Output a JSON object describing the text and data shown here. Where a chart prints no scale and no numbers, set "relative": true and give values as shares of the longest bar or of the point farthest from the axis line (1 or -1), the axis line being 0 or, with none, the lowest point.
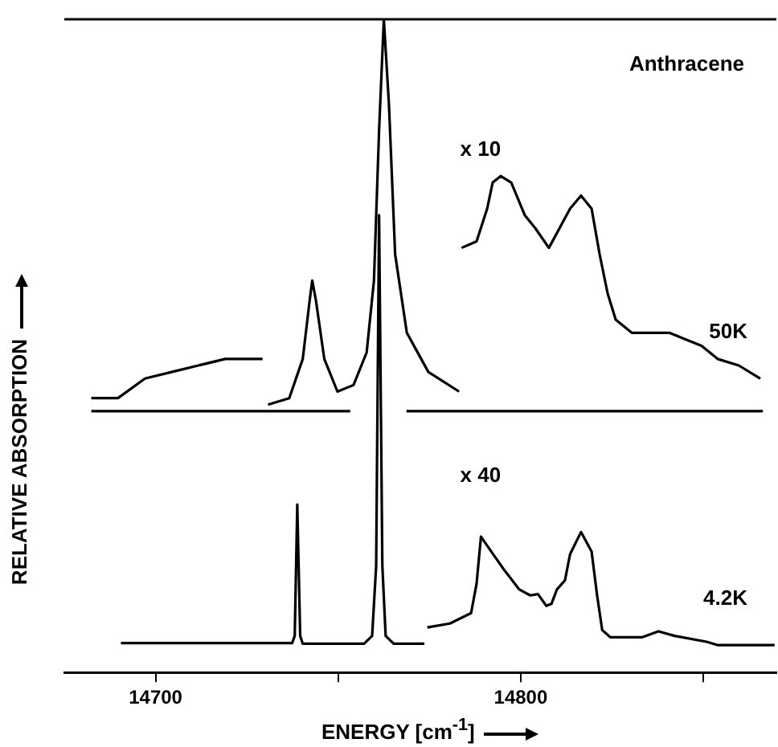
{
  "chart_data": {
    "type": "line",
    "title": "Anthracene",
    "xlabel": "ENERGY [cm$^{-1}$]",
    "ylabel": "RELATIVE ABSORPTION",
    "relative": true,
    "marker": "none",
    "line_style": "solid",
    "xlim": [
      14675,
      14870
    ],
    "xticks": [
      14700,
      {
        "value": 14750,
        "label": null
      },
      14800,
      {
        "value": 14850,
        "label": null
      }
    ],
    "series": [
      {
        "color": "#000000",
        "x": [
          14682.4,
          14753.3,
          14753.4,
          14768.7,
          14866.3
        ],
        "values": [
          0.4,
          0.4,
          null,
          0.4,
          0.4
        ]
      },
      {
        "color": "#000000",
        "x": [
          14682.4,
          14689.7,
          14697.1,
          14704.4,
          14711.7,
          14719.1,
          14729.3
        ],
        "values": [
          0.42,
          0.42,
          0.45,
          0.46,
          0.47,
          0.48,
          0.48
        ]
      },
      {
        "color": "#000000",
        "x": [
          14730.8,
          14736.6,
          14740.3,
          14742.2,
          14742.9,
          14743.9,
          14746.2,
          14749.8,
          14754.2,
          14757.8,
          14759.8,
          14761.2,
          14762.5,
          14763.9,
          14765.6,
          14768.8,
          14774.7,
          14783.1
        ],
        "values": [
          0.41,
          0.42,
          0.48,
          0.57,
          0.6,
          0.57,
          0.48,
          0.43,
          0.44,
          0.49,
          0.6,
          0.83,
          1,
          0.87,
          0.64,
          0.52,
          0.46,
          0.43
        ]
      },
      {
        "name": "50K",
        "color": "#000000",
        "x": [
          14783.8,
          14787.9,
          14790.8,
          14792.3,
          14794.5,
          14797.4,
          14801.1,
          14804,
          14807.7,
          14810.6,
          14813.5,
          14816.5,
          14819.4,
          14821.6,
          14823.8,
          14826,
          14830.4,
          14836.3,
          14840.7,
          14845.1,
          14849.5,
          14853.9,
          14859.7,
          14865.6
        ],
        "values": [
          0.65,
          0.66,
          0.71,
          0.75,
          0.76,
          0.75,
          0.7,
          0.68,
          0.65,
          0.68,
          0.71,
          0.73,
          0.71,
          0.64,
          0.58,
          0.54,
          0.52,
          0.52,
          0.52,
          0.51,
          0.5,
          0.48,
          0.47,
          0.45
        ]
      },
      {
        "color": "#000000",
        "x": [
          14690.5,
          14737.4,
          14738.1,
          14738.8,
          14739.6,
          14740.3,
          14757.1,
          14759.3,
          14760.4,
          14761.2,
          14762.1,
          14763,
          14765.2,
          14773.6
        ],
        "values": [
          0.045,
          0.045,
          0.056,
          0.257,
          0.056,
          0.044,
          0.044,
          0.056,
          0.163,
          0.7,
          0.163,
          0.056,
          0.044,
          0.044
        ]
      },
      {
        "name": "4.2K",
        "color": "#000000",
        "x": [
          14774.4,
          14780.6,
          14786.4,
          14787.9,
          14789.1,
          14790.8,
          14795.2,
          14799.6,
          14802.6,
          14804.7,
          14807,
          14808.4,
          14809.9,
          14812.1,
          14813.5,
          14816.5,
          14819.4,
          14820.9,
          14822.3,
          14824.5,
          14833.3,
          14837.7,
          14842.1,
          14850.9,
          14853.8,
          14869.5
        ],
        "values": [
          0.069,
          0.075,
          0.091,
          0.136,
          0.208,
          0.194,
          0.159,
          0.127,
          0.118,
          0.12,
          0.102,
          0.105,
          0.127,
          0.141,
          0.181,
          0.215,
          0.185,
          0.118,
          0.065,
          0.054,
          0.054,
          0.063,
          0.056,
          0.047,
          0.042,
          0.042
        ]
      }
    ],
    "annotations": [
      "x 10",
      "x 40"
    ]
  }
}
